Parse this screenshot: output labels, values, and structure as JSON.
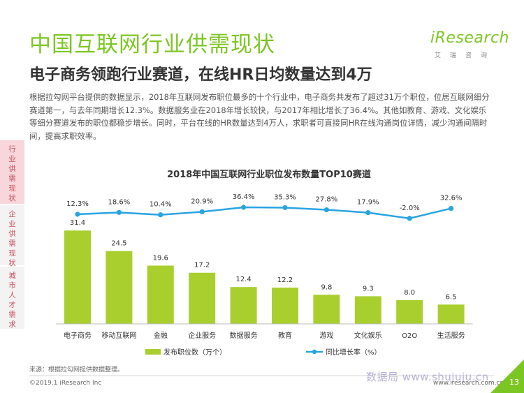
{
  "header": {
    "title": "中国互联网行业供需现状",
    "subtitle": "电子商务领跑行业赛道，在线HR日均数量达到4万"
  },
  "logo": {
    "text": "iResearch",
    "sub": "艾瑞咨询"
  },
  "description": "根据拉勾网平台提供的数据显示，2018年互联网发布职位最多的十个行业中，电子商务共发布了超过31万个职位，位居互联网细分赛道第一，与去年同期增长12.3%。数据服务业在2018年增长较快，与2017年相比增长了36.4%。其他如教育、游戏、文化娱乐等细分赛道发布的职位都稳步增长。同时，平台在线的HR数量达到4万人，求职者可直接同HR在线沟通岗位详情，减少沟通间隔时间，提高求职效率。",
  "side_tabs": [
    "行业供需现状",
    "企业供需现状",
    "城市人才需求"
  ],
  "chart_data": {
    "type": "bar",
    "title": "2018年中国互联网行业职位发布数量TOP10赛道",
    "categories": [
      "电子商务",
      "移动互联网",
      "金融",
      "企业服务",
      "数据服务",
      "教育",
      "游戏",
      "文化娱乐",
      "O2O",
      "生活服务"
    ],
    "series": [
      {
        "name": "发布职位数（万个）",
        "type": "bar",
        "values": [
          31.4,
          24.5,
          19.6,
          17.2,
          12.4,
          12.2,
          9.8,
          9.3,
          8.0,
          6.5
        ],
        "color": "#a9cf2f"
      },
      {
        "name": "同比增长率（%）",
        "type": "line",
        "values": [
          12.3,
          18.6,
          10.4,
          20.9,
          36.4,
          35.3,
          27.8,
          17.9,
          -2.0,
          32.6
        ],
        "labels": [
          "12.3%",
          "18.6%",
          "10.4%",
          "20.9%",
          "36.4%",
          "35.3%",
          "27.8%",
          "17.9%",
          "-2.0%",
          "32.6%"
        ],
        "color": "#29a4e1"
      }
    ],
    "legend_position": "bottom",
    "grid": false
  },
  "footer": {
    "source": "来源：根据拉勾网提供数据整理。",
    "copyright": "©2019.1 iResearch Inc",
    "site": "www.iresearch.com.cn",
    "watermark": "数据局 www.shujuju.cn",
    "page": "13"
  },
  "colors": {
    "accent": "#7cc623",
    "bar": "#a9cf2f",
    "line": "#29a4e1",
    "side_active": "#f7d7dc",
    "side_text": "#c94f5f"
  }
}
